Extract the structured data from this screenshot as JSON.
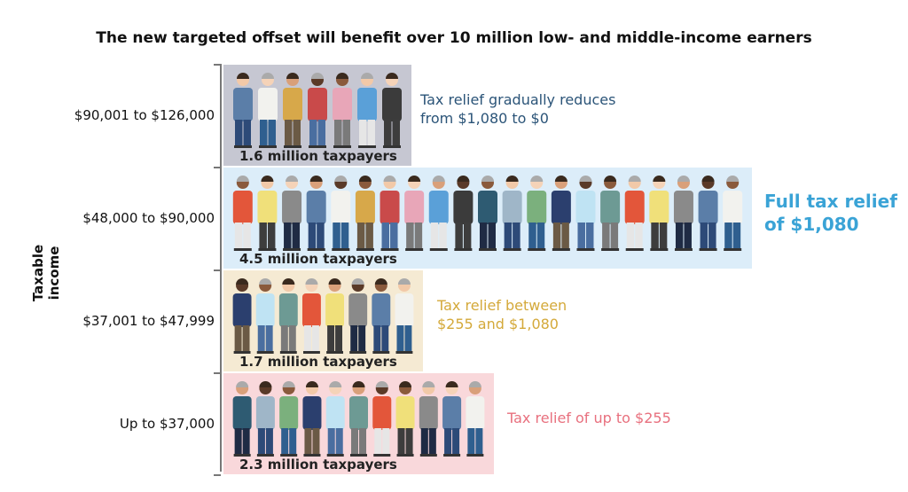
{
  "chart_data": {
    "type": "bar",
    "orientation": "horizontal",
    "title": "The new targeted offset will benefit over 10 million low- and middle-income earners",
    "ylabel": "Taxable income",
    "xlabel": "",
    "unit": "million taxpayers",
    "categories": [
      "$90,001 to $126,000",
      "$48,000 to $90,000",
      "$37,001 to $47,999",
      "Up to $37,000"
    ],
    "values": [
      1.6,
      4.5,
      1.7,
      2.3
    ],
    "value_labels": [
      "1.6 million taxpayers",
      "4.5 million taxpayers",
      "1.7 million taxpayers",
      "2.3 million taxpayers"
    ],
    "annotations": [
      {
        "lines": [
          "Tax relief gradually reduces",
          "from $1,080 to $0"
        ],
        "color": "#2b5478"
      },
      {
        "lines": [
          "Full tax relief",
          "of $1,080"
        ],
        "color": "#3aa3d6"
      },
      {
        "lines": [
          "Tax relief between",
          "$255 and $1,080"
        ],
        "color": "#d4a93a"
      },
      {
        "lines": [
          "Tax relief of up to $255"
        ],
        "color": "#e8707e"
      }
    ],
    "bar_colors": [
      "#c6c7d2",
      "#dcedf9",
      "#f5ead3",
      "#f9d8db"
    ],
    "grid": false
  }
}
